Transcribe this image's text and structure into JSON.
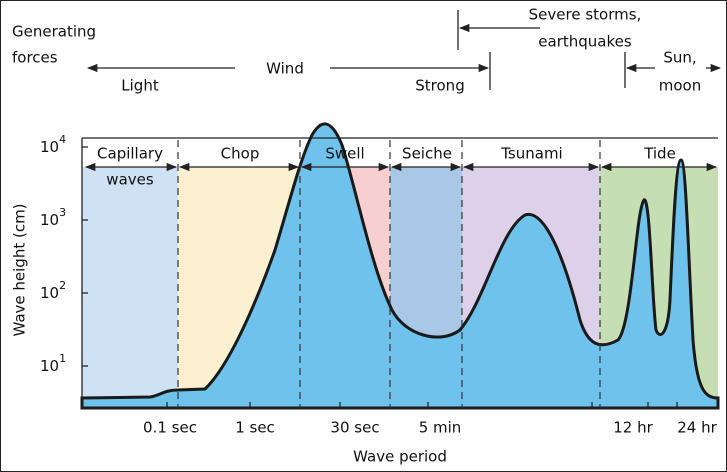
{
  "header": {
    "lines": [
      "Generating",
      "forces"
    ]
  },
  "forces": {
    "light": "Light",
    "wind": "Wind",
    "strong": "Strong",
    "severe": [
      "Severe storms,",
      "earthquakes"
    ],
    "sun_moon": [
      "Sun,",
      "moon"
    ]
  },
  "regions": [
    {
      "lines": [
        "Capillary",
        "waves"
      ]
    },
    {
      "lines": [
        "Chop"
      ]
    },
    {
      "lines": [
        "Swell"
      ]
    },
    {
      "lines": [
        "Seiche"
      ]
    },
    {
      "lines": [
        "Tsunami"
      ]
    },
    {
      "lines": [
        "Tide"
      ]
    }
  ],
  "y_axis": {
    "title": "Wave height (cm)",
    "ticks": [
      {
        "base": "10",
        "exp": "4"
      },
      {
        "base": "10",
        "exp": "3"
      },
      {
        "base": "10",
        "exp": "2"
      },
      {
        "base": "10",
        "exp": "1"
      }
    ]
  },
  "x_axis": {
    "title": "Wave period",
    "ticks": [
      "0.1 sec",
      "1 sec",
      "30 sec",
      "5 min",
      "12 hr",
      "24 hr"
    ]
  }
}
